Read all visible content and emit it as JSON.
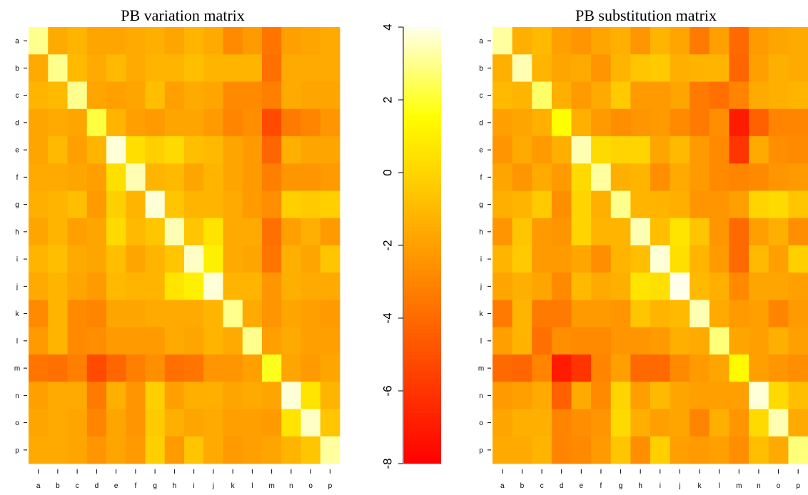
{
  "chart_data": [
    {
      "type": "heatmap",
      "title": "PB variation matrix",
      "xlabel": "",
      "ylabel": "",
      "rows": [
        "a",
        "b",
        "c",
        "d",
        "e",
        "f",
        "g",
        "h",
        "i",
        "j",
        "k",
        "l",
        "m",
        "n",
        "o",
        "p"
      ],
      "cols": [
        "a",
        "b",
        "c",
        "d",
        "e",
        "f",
        "g",
        "h",
        "i",
        "j",
        "k",
        "l",
        "m",
        "n",
        "o",
        "p"
      ],
      "scale": [
        -8,
        4
      ],
      "values": [
        [
          3.0,
          -1.6,
          -1.2,
          -1.8,
          -1.8,
          -1.6,
          -1.4,
          -1.8,
          -1.2,
          -1.6,
          -2.8,
          -2.2,
          -3.6,
          -2.0,
          -1.8,
          -1.6
        ],
        [
          -1.6,
          3.0,
          -1.0,
          -1.6,
          -1.0,
          -1.6,
          -1.2,
          -1.2,
          -0.8,
          -1.2,
          -1.2,
          -1.2,
          -3.8,
          -1.6,
          -1.6,
          -1.6
        ],
        [
          -1.2,
          -1.0,
          3.0,
          -1.8,
          -2.0,
          -1.8,
          -0.8,
          -2.0,
          -1.6,
          -1.8,
          -2.8,
          -2.8,
          -3.2,
          -1.6,
          -1.8,
          -1.8
        ],
        [
          -1.8,
          -1.6,
          -1.8,
          2.2,
          -1.2,
          -2.0,
          -2.2,
          -1.8,
          -1.8,
          -2.2,
          -3.0,
          -2.6,
          -5.2,
          -3.4,
          -3.0,
          -2.4
        ],
        [
          -1.8,
          -1.0,
          -2.0,
          -1.2,
          3.8,
          0.4,
          -0.2,
          0.2,
          -0.8,
          -1.0,
          -1.8,
          -2.2,
          -4.2,
          -1.4,
          -1.8,
          -1.8
        ],
        [
          -1.6,
          -1.6,
          -1.8,
          -2.0,
          0.4,
          3.4,
          -1.2,
          -1.0,
          -1.8,
          -1.2,
          -1.8,
          -2.2,
          -3.2,
          -2.4,
          -2.4,
          -2.2
        ],
        [
          -1.4,
          -1.2,
          -0.8,
          -2.2,
          -0.2,
          -1.2,
          3.8,
          -0.6,
          -1.2,
          -1.2,
          -1.6,
          -2.2,
          -2.6,
          -0.2,
          -0.4,
          -0.2
        ],
        [
          -1.8,
          -1.2,
          -2.0,
          -1.8,
          0.2,
          -1.0,
          -0.6,
          3.4,
          -0.6,
          0.6,
          -1.6,
          -1.6,
          -3.8,
          -2.0,
          -1.4,
          -2.2
        ],
        [
          -1.2,
          -0.8,
          -1.6,
          -1.8,
          -0.8,
          -1.8,
          -1.2,
          -0.6,
          3.6,
          1.0,
          -1.6,
          -1.8,
          -3.6,
          -1.4,
          -1.8,
          -0.6
        ],
        [
          -1.6,
          -1.2,
          -1.8,
          -2.2,
          -1.0,
          -1.2,
          -1.2,
          0.6,
          1.0,
          3.8,
          -1.2,
          -1.2,
          -2.4,
          -1.4,
          -1.6,
          -1.6
        ],
        [
          -2.8,
          -1.2,
          -2.8,
          -3.0,
          -1.8,
          -1.8,
          -1.6,
          -1.6,
          -1.6,
          -1.2,
          3.0,
          -1.6,
          -2.4,
          -1.8,
          -2.0,
          -2.2
        ],
        [
          -2.2,
          -1.2,
          -2.8,
          -2.6,
          -2.2,
          -2.2,
          -2.2,
          -1.6,
          -1.8,
          -1.2,
          -1.6,
          3.0,
          -2.0,
          -1.6,
          -2.0,
          -2.0
        ],
        [
          -3.6,
          -3.8,
          -3.2,
          -5.2,
          -4.2,
          -3.2,
          -2.6,
          -3.8,
          -3.6,
          -2.4,
          -2.4,
          -2.0,
          1.8,
          -1.8,
          -2.2,
          -1.8
        ],
        [
          -2.0,
          -1.6,
          -1.6,
          -3.4,
          -1.4,
          -2.4,
          -0.2,
          -2.0,
          -1.4,
          -1.4,
          -1.8,
          -1.6,
          -1.8,
          3.8,
          0.6,
          -1.2
        ],
        [
          -1.8,
          -1.6,
          -1.8,
          -3.0,
          -1.8,
          -2.4,
          -0.4,
          -1.4,
          -1.8,
          -1.6,
          -2.0,
          -2.0,
          -2.2,
          0.6,
          3.6,
          -0.6
        ],
        [
          -1.6,
          -1.6,
          -1.8,
          -2.4,
          -1.8,
          -2.2,
          -0.2,
          -2.2,
          -0.6,
          -1.6,
          -2.2,
          -2.0,
          -1.8,
          -1.2,
          -0.6,
          3.2
        ]
      ]
    },
    {
      "type": "heatmap",
      "title": "PB substitution matrix",
      "xlabel": "",
      "ylabel": "",
      "rows": [
        "a",
        "b",
        "c",
        "d",
        "e",
        "f",
        "g",
        "h",
        "i",
        "j",
        "k",
        "l",
        "m",
        "n",
        "o",
        "p"
      ],
      "cols": [
        "a",
        "b",
        "c",
        "d",
        "e",
        "f",
        "g",
        "h",
        "i",
        "j",
        "k",
        "l",
        "m",
        "n",
        "o",
        "p"
      ],
      "scale": [
        -8,
        4
      ],
      "values": [
        [
          3.2,
          -1.4,
          -1.0,
          -2.0,
          -2.4,
          -1.8,
          -1.4,
          -2.4,
          -1.2,
          -1.8,
          -3.4,
          -2.0,
          -4.0,
          -2.2,
          -1.8,
          -1.6
        ],
        [
          -1.4,
          3.4,
          -1.2,
          -1.8,
          -1.6,
          -2.4,
          -1.2,
          -0.6,
          -0.4,
          -1.4,
          -1.2,
          -1.2,
          -4.2,
          -2.0,
          -1.4,
          -1.6
        ],
        [
          -1.0,
          -1.2,
          2.6,
          -1.4,
          -2.2,
          -1.6,
          -0.4,
          -2.2,
          -2.2,
          -1.8,
          -3.4,
          -3.8,
          -3.0,
          -1.6,
          -1.4,
          -1.2
        ],
        [
          -2.0,
          -1.8,
          -1.4,
          1.6,
          -1.4,
          -2.2,
          -2.6,
          -2.4,
          -2.2,
          -2.8,
          -3.4,
          -2.6,
          -7.0,
          -4.4,
          -3.0,
          -3.0
        ],
        [
          -2.4,
          -1.6,
          -2.2,
          -1.4,
          3.4,
          0.2,
          0.0,
          0.0,
          -1.8,
          -1.0,
          -2.2,
          -2.8,
          -6.0,
          -1.6,
          -2.6,
          -2.8
        ],
        [
          -1.8,
          -2.4,
          -1.6,
          -2.2,
          0.2,
          3.2,
          -1.4,
          -1.2,
          -2.6,
          -1.6,
          -2.2,
          -2.8,
          -3.0,
          -2.8,
          -2.4,
          -2.2
        ],
        [
          -1.4,
          -1.2,
          -0.4,
          -2.6,
          0.0,
          -1.4,
          3.0,
          -1.2,
          -1.2,
          -1.4,
          -2.4,
          -2.4,
          -2.0,
          0.0,
          0.2,
          -0.6
        ],
        [
          -2.4,
          -0.6,
          -2.2,
          -2.4,
          0.0,
          -1.2,
          -1.2,
          3.4,
          -0.8,
          0.6,
          -0.6,
          -2.4,
          -4.0,
          -2.0,
          -1.4,
          -2.6
        ],
        [
          -1.2,
          -0.4,
          -2.2,
          -2.2,
          -1.8,
          -2.6,
          -1.2,
          -0.8,
          3.8,
          0.4,
          -1.2,
          -2.2,
          -4.0,
          -1.0,
          -2.0,
          -0.2
        ],
        [
          -1.8,
          -1.4,
          -1.8,
          -2.8,
          -1.0,
          -1.6,
          -1.4,
          0.6,
          0.4,
          4.0,
          -1.0,
          -1.4,
          -2.8,
          -1.8,
          -1.8,
          -2.0
        ],
        [
          -3.4,
          -1.2,
          -3.4,
          -3.4,
          -2.2,
          -2.2,
          -2.4,
          -0.6,
          -1.2,
          -1.0,
          3.4,
          -1.6,
          -2.2,
          -2.0,
          -3.0,
          -2.2
        ],
        [
          -2.0,
          -1.2,
          -3.8,
          -2.6,
          -2.8,
          -2.8,
          -2.4,
          -2.4,
          -2.2,
          -1.4,
          -1.6,
          2.8,
          -1.8,
          -2.0,
          -1.4,
          -2.0
        ],
        [
          -4.0,
          -4.2,
          -3.0,
          -7.0,
          -6.0,
          -3.0,
          -2.0,
          -4.0,
          -4.0,
          -2.8,
          -2.2,
          -1.8,
          1.4,
          -2.0,
          -2.4,
          -2.6
        ],
        [
          -2.2,
          -2.0,
          -1.6,
          -4.4,
          -1.6,
          -2.8,
          0.0,
          -2.0,
          -1.0,
          -1.8,
          -2.0,
          -2.0,
          -2.0,
          3.8,
          0.2,
          -0.8
        ],
        [
          -1.8,
          -1.4,
          -1.4,
          -3.0,
          -2.6,
          -2.4,
          0.2,
          -1.4,
          -2.0,
          -1.8,
          -3.0,
          -1.4,
          -2.4,
          0.2,
          3.4,
          -1.6
        ],
        [
          -1.6,
          -1.6,
          -1.2,
          -3.0,
          -2.8,
          -2.2,
          -0.6,
          -2.6,
          -0.2,
          -2.0,
          -2.2,
          -2.0,
          -2.6,
          -0.8,
          -1.6,
          2.8
        ]
      ]
    }
  ],
  "colorbar": {
    "ticks": [
      4,
      2,
      0,
      -2,
      -4,
      -6,
      -8
    ],
    "range": [
      -8,
      4
    ]
  }
}
